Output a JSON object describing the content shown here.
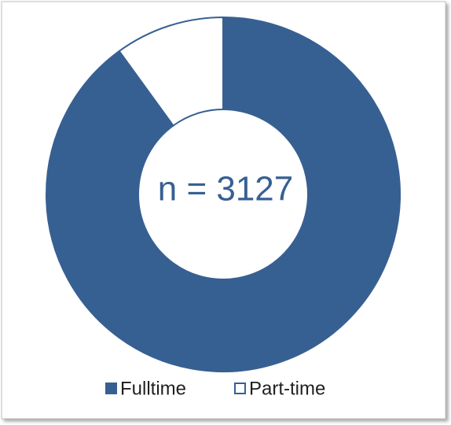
{
  "chart_data": {
    "type": "pie",
    "categories": [
      "Fulltime",
      "Part-time"
    ],
    "values": [
      90,
      10
    ],
    "colors": [
      "#376092",
      "#ffffff"
    ],
    "edge_color": "#376092",
    "center_label": "n = 3127",
    "legend": "bottom"
  }
}
